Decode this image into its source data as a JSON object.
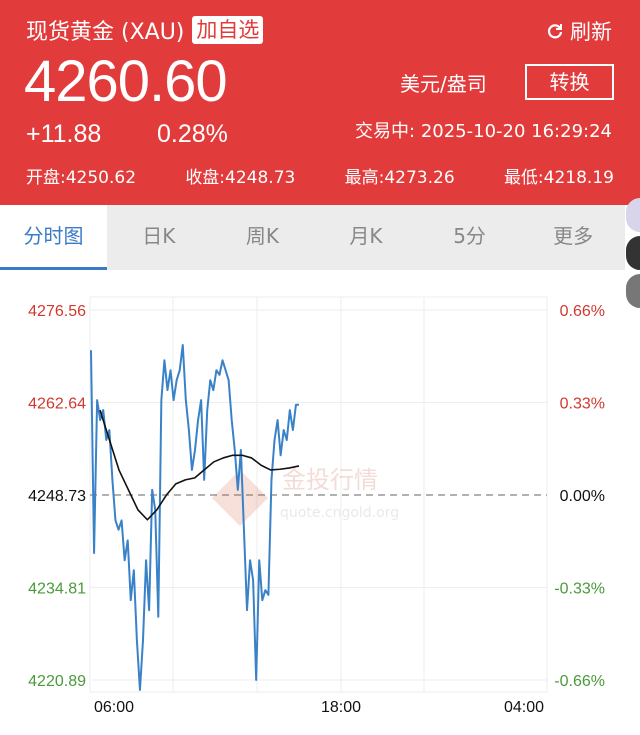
{
  "header": {
    "title": "现货黄金 (XAU)",
    "add_watchlist": "加自选",
    "refresh": "刷新",
    "refresh_icon": "refresh-icon",
    "price": "4260.60",
    "unit": "美元/盎司",
    "convert": "转换",
    "change": "+11.88",
    "change_pct": "0.28%",
    "status": "交易中:  2025-10-20 16:29:24",
    "stats": [
      "开盘:4250.62",
      "收盘:4248.73",
      "最高:4273.26",
      "最低:4218.19"
    ],
    "color": "#e23b3b"
  },
  "tabs": [
    {
      "label": "分时图",
      "active": true
    },
    {
      "label": "日K"
    },
    {
      "label": "周K"
    },
    {
      "label": "月K"
    },
    {
      "label": "5分"
    },
    {
      "label": "更多"
    }
  ],
  "chart_data": {
    "type": "line",
    "yticks_left": [
      "4276.56",
      "4262.64",
      "4248.73",
      "4234.81",
      "4220.89"
    ],
    "yticks_right": [
      "0.66%",
      "0.33%",
      "0.00%",
      "-0.33%",
      "-0.66%"
    ],
    "ylim": [
      4220.89,
      4276.56
    ],
    "baseline": 4248.73,
    "xticks": [
      "06:00",
      "18:00",
      "04:00"
    ],
    "watermark": [
      "金投行情",
      "quote.cngold.org"
    ],
    "grid": true,
    "colors": {
      "price": "#3a82c8",
      "average": "#111111",
      "up": "#d0392f",
      "down": "#4a9a3a"
    },
    "series": [
      {
        "key": "price",
        "values": [
          4270.5,
          4240,
          4263.0,
          4260.0,
          4261.5,
          4257.0,
          4258.5,
          4251.0,
          4244.9,
          4243.5,
          4244.9,
          4238.9,
          4241.9,
          4232.9,
          4237.4,
          4226.9,
          4219.4,
          4226.9,
          4238.9,
          4231.4,
          4249.5,
          4246.5,
          4230.4,
          4263.0,
          4269.0,
          4264.5,
          4267.5,
          4263.0,
          4266.0,
          4267.5,
          4271.3,
          4263.0,
          4258.5,
          4252.5,
          4255.5,
          4260.0,
          4263.0,
          4251.0,
          4261.5,
          4266.0,
          4264.5,
          4267.5,
          4266.8,
          4269.0,
          4267.5,
          4266.0,
          4260.0,
          4255.5,
          4249.5,
          4255.5,
          4243.5,
          4231.4,
          4238.9,
          4235.9,
          4220.9,
          4238.9,
          4232.9,
          4234.4,
          4233.7,
          4251.0,
          4257.0,
          4260.0,
          4254.7,
          4258.5,
          4257.0,
          4261.5,
          4258.5,
          4262.3,
          4262.3
        ]
      },
      {
        "key": "average",
        "values": [
          4261.5,
          4257.0,
          4252.5,
          4249.5,
          4246.5,
          4245.0,
          4246.5,
          4248.7,
          4250.4,
          4251.0,
          4251.3,
          4252.5,
          4253.7,
          4254.3,
          4254.7,
          4254.7,
          4254.3,
          4253.2,
          4252.5,
          4252.6,
          4252.8,
          4253.1
        ]
      }
    ]
  }
}
